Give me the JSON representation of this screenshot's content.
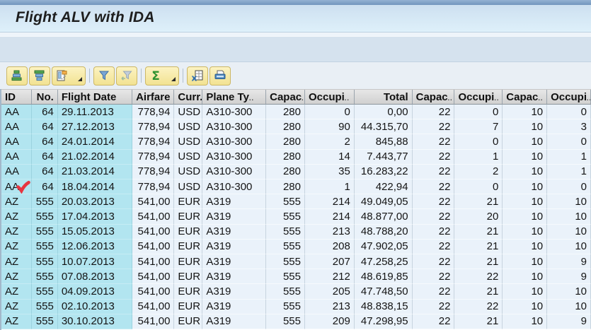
{
  "window": {
    "title": "Flight ALV with IDA"
  },
  "ui": {
    "truncation_indicator": ".."
  },
  "toolbar": {
    "buttons": [
      {
        "name": "sort-ascending",
        "icon": "sort-ascending-icon",
        "has_dropdown": false,
        "enabled": true,
        "group_break_after": false
      },
      {
        "name": "sort-descending",
        "icon": "sort-descending-icon",
        "has_dropdown": false,
        "enabled": true,
        "group_break_after": false
      },
      {
        "name": "choose-layout",
        "icon": "layout-icon",
        "has_dropdown": true,
        "enabled": true,
        "group_break_after": true
      },
      {
        "name": "set-filter",
        "icon": "filter-icon",
        "has_dropdown": false,
        "enabled": true,
        "group_break_after": false
      },
      {
        "name": "remove-filter",
        "icon": "remove-filter-icon",
        "has_dropdown": false,
        "enabled": false,
        "group_break_after": true
      },
      {
        "name": "sum",
        "icon": "sigma-icon",
        "has_dropdown": true,
        "enabled": true,
        "group_break_after": true
      },
      {
        "name": "export-to-spreadsheet",
        "icon": "spreadsheet-icon",
        "has_dropdown": false,
        "enabled": true,
        "group_break_after": false
      },
      {
        "name": "print",
        "icon": "printer-icon",
        "has_dropdown": false,
        "enabled": true,
        "group_break_after": false
      }
    ]
  },
  "table": {
    "columns": [
      {
        "label": "ID",
        "header_align": "left",
        "cell_align": "left",
        "key": true,
        "truncated": false
      },
      {
        "label": "No.",
        "header_align": "right",
        "cell_align": "right",
        "key": true,
        "truncated": false
      },
      {
        "label": "Flight Date",
        "header_align": "left",
        "cell_align": "left",
        "key": true,
        "truncated": false
      },
      {
        "label": "Airfare",
        "header_align": "right",
        "cell_align": "right",
        "key": false,
        "truncated": false
      },
      {
        "label": "Curr.",
        "header_align": "left",
        "cell_align": "left",
        "key": false,
        "truncated": false
      },
      {
        "label": "Plane Ty",
        "header_align": "left",
        "cell_align": "left",
        "key": false,
        "truncated": true
      },
      {
        "label": "Capac",
        "header_align": "left",
        "cell_align": "right",
        "key": false,
        "truncated": true
      },
      {
        "label": "Occupi",
        "header_align": "left",
        "cell_align": "right",
        "key": false,
        "truncated": true
      },
      {
        "label": "Total",
        "header_align": "right",
        "cell_align": "right",
        "key": false,
        "truncated": false
      },
      {
        "label": "Capac",
        "header_align": "left",
        "cell_align": "right",
        "key": false,
        "truncated": true
      },
      {
        "label": "Occupi",
        "header_align": "left",
        "cell_align": "right",
        "key": false,
        "truncated": true
      },
      {
        "label": "Capac",
        "header_align": "left",
        "cell_align": "right",
        "key": false,
        "truncated": true
      },
      {
        "label": "Occupi",
        "header_align": "left",
        "cell_align": "right",
        "key": false,
        "truncated": true
      }
    ],
    "rows": [
      [
        "AA",
        "64",
        "29.11.2013",
        "778,94",
        "USD",
        "A310-300",
        "280",
        "0",
        "0,00",
        "22",
        "0",
        "10",
        "0"
      ],
      [
        "AA",
        "64",
        "27.12.2013",
        "778,94",
        "USD",
        "A310-300",
        "280",
        "90",
        "44.315,70",
        "22",
        "7",
        "10",
        "3"
      ],
      [
        "AA",
        "64",
        "24.01.2014",
        "778,94",
        "USD",
        "A310-300",
        "280",
        "2",
        "845,88",
        "22",
        "0",
        "10",
        "0"
      ],
      [
        "AA",
        "64",
        "21.02.2014",
        "778,94",
        "USD",
        "A310-300",
        "280",
        "14",
        "7.443,77",
        "22",
        "1",
        "10",
        "1"
      ],
      [
        "AA",
        "64",
        "21.03.2014",
        "778,94",
        "USD",
        "A310-300",
        "280",
        "35",
        "16.283,22",
        "22",
        "2",
        "10",
        "1"
      ],
      [
        "AA",
        "64",
        "18.04.2014",
        "778,94",
        "USD",
        "A310-300",
        "280",
        "1",
        "422,94",
        "22",
        "0",
        "10",
        "0"
      ],
      [
        "AZ",
        "555",
        "20.03.2013",
        "541,00",
        "EUR",
        "A319",
        "555",
        "214",
        "49.049,05",
        "22",
        "21",
        "10",
        "10"
      ],
      [
        "AZ",
        "555",
        "17.04.2013",
        "541,00",
        "EUR",
        "A319",
        "555",
        "214",
        "48.877,00",
        "22",
        "20",
        "10",
        "10"
      ],
      [
        "AZ",
        "555",
        "15.05.2013",
        "541,00",
        "EUR",
        "A319",
        "555",
        "213",
        "48.788,20",
        "22",
        "21",
        "10",
        "10"
      ],
      [
        "AZ",
        "555",
        "12.06.2013",
        "541,00",
        "EUR",
        "A319",
        "555",
        "208",
        "47.902,05",
        "22",
        "21",
        "10",
        "10"
      ],
      [
        "AZ",
        "555",
        "10.07.2013",
        "541,00",
        "EUR",
        "A319",
        "555",
        "207",
        "47.258,25",
        "22",
        "21",
        "10",
        "9"
      ],
      [
        "AZ",
        "555",
        "07.08.2013",
        "541,00",
        "EUR",
        "A319",
        "555",
        "212",
        "48.619,85",
        "22",
        "22",
        "10",
        "9"
      ],
      [
        "AZ",
        "555",
        "04.09.2013",
        "541,00",
        "EUR",
        "A319",
        "555",
        "205",
        "47.748,50",
        "22",
        "21",
        "10",
        "10"
      ],
      [
        "AZ",
        "555",
        "02.10.2013",
        "541,00",
        "EUR",
        "A319",
        "555",
        "213",
        "48.838,15",
        "22",
        "22",
        "10",
        "10"
      ],
      [
        "AZ",
        "555",
        "30.10.2013",
        "541,00",
        "EUR",
        "A319",
        "555",
        "209",
        "47.298,95",
        "22",
        "21",
        "10",
        "9"
      ]
    ],
    "annotation": {
      "type": "red-checkmark",
      "row": 5,
      "col": 0
    }
  },
  "colors": {
    "key_column_bg": "#b2e5f0",
    "row_bg": "#eaf2fa",
    "header_bg": "#d9d9d9",
    "button_bg": "#f6eaa5",
    "title_bar_bg": "#d3e4f3",
    "checkmark": "#e73540"
  }
}
